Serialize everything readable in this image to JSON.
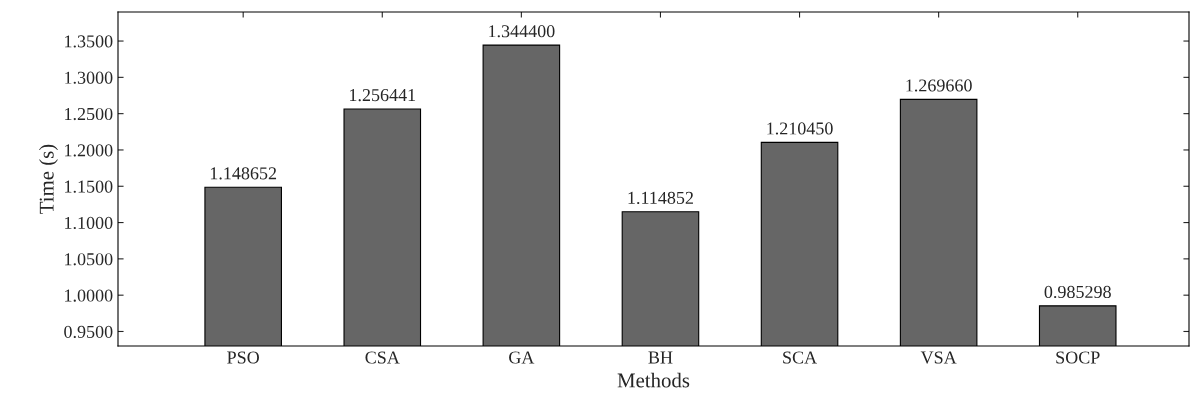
{
  "chart_data": {
    "type": "bar",
    "xlabel": "Methods",
    "ylabel": "Time (s)",
    "categories": [
      "PSO",
      "CSA",
      "GA",
      "BH",
      "SCA",
      "VSA",
      "SOCP"
    ],
    "values": [
      1.148652,
      1.256441,
      1.3444,
      1.114852,
      1.21045,
      1.26966,
      0.985298
    ],
    "value_labels": [
      "1.148652",
      "1.256441",
      "1.344400",
      "1.114852",
      "1.210450",
      "1.269660",
      "0.985298"
    ],
    "color": "#666666",
    "ylim": [
      0.93,
      1.39
    ],
    "yticks": [
      {
        "value": 0.95,
        "label": "0.9500"
      },
      {
        "value": 1.0,
        "label": "1.0000"
      },
      {
        "value": 1.05,
        "label": "1.0500"
      },
      {
        "value": 1.1,
        "label": "1.1000"
      },
      {
        "value": 1.15,
        "label": "1.1500"
      },
      {
        "value": 1.2,
        "label": "1.2000"
      },
      {
        "value": 1.25,
        "label": "1.2500"
      },
      {
        "value": 1.3,
        "label": "1.3000"
      },
      {
        "value": 1.35,
        "label": "1.3500"
      }
    ],
    "grid": false,
    "legend": false
  }
}
